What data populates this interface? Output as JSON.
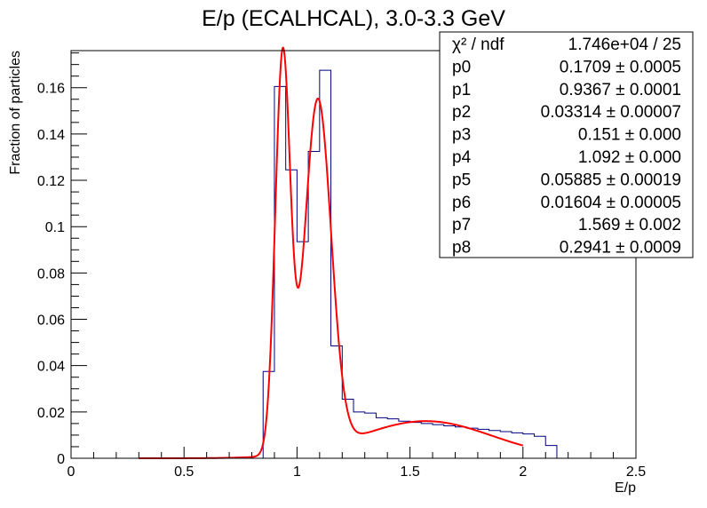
{
  "chart_data": {
    "type": "histogram+line",
    "title": "E/p (ECALHCAL), 3.0-3.3 GeV",
    "xlabel": "E/p",
    "ylabel": "Fraction of particles",
    "xlim": [
      0,
      2.5
    ],
    "ylim": [
      0,
      0.176
    ],
    "x_ticks": [
      "0",
      "0.5",
      "1",
      "1.5",
      "2",
      "2.5"
    ],
    "y_ticks": [
      "0",
      "0.02",
      "0.04",
      "0.06",
      "0.08",
      "0.1",
      "0.12",
      "0.14",
      "0.16"
    ],
    "y_tick_values": [
      0,
      0.02,
      0.04,
      0.06,
      0.08,
      0.1,
      0.12,
      0.14,
      0.16
    ],
    "grid": false,
    "histogram": {
      "color": "#000080",
      "bin_width": 0.05,
      "bins": [
        {
          "x0": 0.3,
          "x1": 0.85,
          "y": 0.0
        },
        {
          "x0": 0.85,
          "x1": 0.9,
          "y": 0.0375
        },
        {
          "x0": 0.9,
          "x1": 0.95,
          "y": 0.1605
        },
        {
          "x0": 0.95,
          "x1": 1.0,
          "y": 0.1245
        },
        {
          "x0": 1.0,
          "x1": 1.05,
          "y": 0.0935
        },
        {
          "x0": 1.05,
          "x1": 1.1,
          "y": 0.1325
        },
        {
          "x0": 1.1,
          "x1": 1.15,
          "y": 0.1675
        },
        {
          "x0": 1.15,
          "x1": 1.2,
          "y": 0.0485
        },
        {
          "x0": 1.2,
          "x1": 1.25,
          "y": 0.0255
        },
        {
          "x0": 1.25,
          "x1": 1.3,
          "y": 0.02
        },
        {
          "x0": 1.3,
          "x1": 1.35,
          "y": 0.0195
        },
        {
          "x0": 1.35,
          "x1": 1.4,
          "y": 0.0175
        },
        {
          "x0": 1.4,
          "x1": 1.45,
          "y": 0.017
        },
        {
          "x0": 1.45,
          "x1": 1.5,
          "y": 0.016
        },
        {
          "x0": 1.5,
          "x1": 1.55,
          "y": 0.0155
        },
        {
          "x0": 1.55,
          "x1": 1.6,
          "y": 0.015
        },
        {
          "x0": 1.6,
          "x1": 1.65,
          "y": 0.0145
        },
        {
          "x0": 1.65,
          "x1": 1.7,
          "y": 0.014
        },
        {
          "x0": 1.7,
          "x1": 1.75,
          "y": 0.0135
        },
        {
          "x0": 1.75,
          "x1": 1.8,
          "y": 0.013
        },
        {
          "x0": 1.8,
          "x1": 1.85,
          "y": 0.0125
        },
        {
          "x0": 1.85,
          "x1": 1.9,
          "y": 0.012
        },
        {
          "x0": 1.9,
          "x1": 1.95,
          "y": 0.0115
        },
        {
          "x0": 1.95,
          "x1": 2.0,
          "y": 0.011
        },
        {
          "x0": 2.0,
          "x1": 2.05,
          "y": 0.0105
        },
        {
          "x0": 2.05,
          "x1": 2.1,
          "y": 0.0095
        },
        {
          "x0": 2.1,
          "x1": 2.15,
          "y": 0.0055
        },
        {
          "x0": 2.15,
          "x1": 2.2,
          "y": 0.0
        }
      ]
    },
    "fit_function": {
      "color": "#ff0000",
      "form": "p0*gaus(p1,p2) + p3*gaus(p4,p5) + p6*gaus(p7,p8)",
      "range": [
        0.3,
        2.0
      ],
      "parameters": {
        "p0": 0.1709,
        "p1": 0.9367,
        "p2": 0.03314,
        "p3": 0.151,
        "p4": 1.092,
        "p5": 0.05885,
        "p6": 0.01604,
        "p7": 1.569,
        "p8": 0.2941
      }
    }
  },
  "stats_box": {
    "rows": [
      {
        "name": "χ² / ndf",
        "value": "1.746e+04 / 25"
      },
      {
        "name": "p0",
        "value": "0.1709 ± 0.0005"
      },
      {
        "name": "p1",
        "value": "0.9367 ± 0.0001"
      },
      {
        "name": "p2",
        "value": "0.03314 ± 0.00007"
      },
      {
        "name": "p3",
        "value": "0.151 ± 0.000"
      },
      {
        "name": "p4",
        "value": "1.092 ± 0.000"
      },
      {
        "name": "p5",
        "value": "0.05885 ± 0.00019"
      },
      {
        "name": "p6",
        "value": "0.01604 ± 0.00005"
      },
      {
        "name": "p7",
        "value": "1.569 ± 0.002"
      },
      {
        "name": "p8",
        "value": "0.2941 ± 0.0009"
      }
    ]
  }
}
